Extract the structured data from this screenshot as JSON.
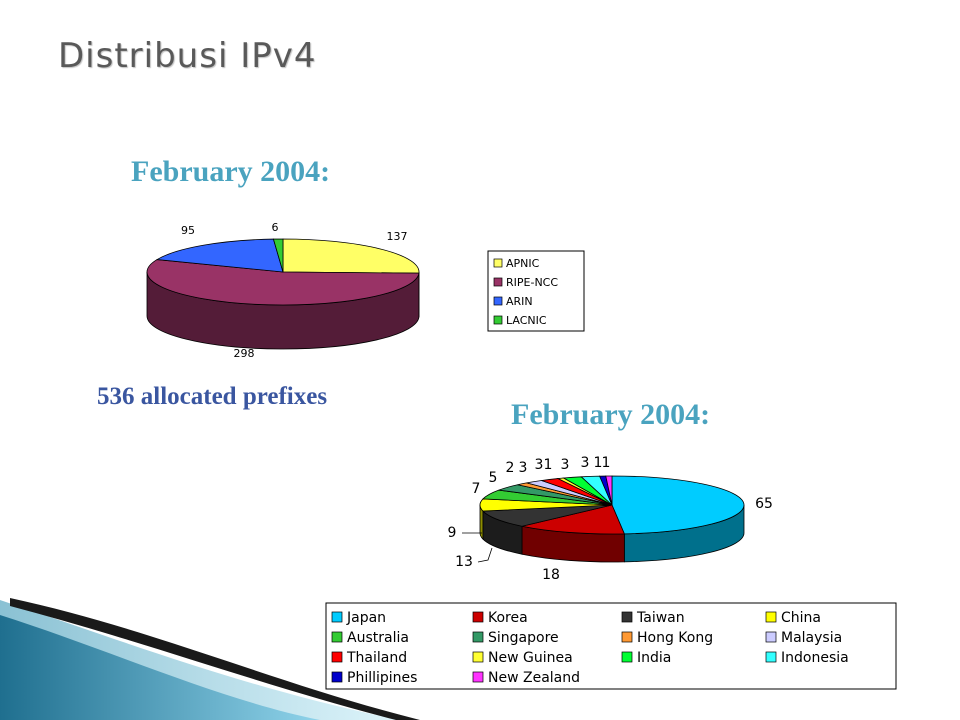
{
  "slide": {
    "title": "Distribusi IPv4",
    "subtitle_1": "February 2004:",
    "subtitle_2": "February 2004:",
    "caption": "536 allocated prefixes"
  },
  "chart_data": [
    {
      "type": "pie",
      "style": "3d",
      "categories": [
        "APNIC",
        "RIPE-NCC",
        "ARIN",
        "LACNIC"
      ],
      "values": [
        137,
        298,
        95,
        6
      ],
      "colors": [
        "#ffff66",
        "#993366",
        "#3366ff",
        "#33cc33"
      ],
      "legend": "right"
    },
    {
      "type": "pie",
      "style": "3d",
      "categories": [
        "Japan",
        "Korea",
        "Taiwan",
        "China",
        "Australia",
        "Singapore",
        "Hong Kong",
        "Malaysia",
        "Thailand",
        "New Guinea",
        "India",
        "Indonesia",
        "Phillipines",
        "New Zealand"
      ],
      "values": [
        65,
        18,
        13,
        9,
        7,
        5,
        2,
        3,
        3,
        1,
        3,
        3,
        1,
        1
      ],
      "colors": [
        "#00ccff",
        "#cc0000",
        "#333333",
        "#ffff00",
        "#33cc33",
        "#339966",
        "#ff9933",
        "#ccccff",
        "#ff0000",
        "#ffff33",
        "#00ff33",
        "#33ffff",
        "#0000cc",
        "#ff33ff"
      ],
      "legend": "bottom"
    }
  ]
}
